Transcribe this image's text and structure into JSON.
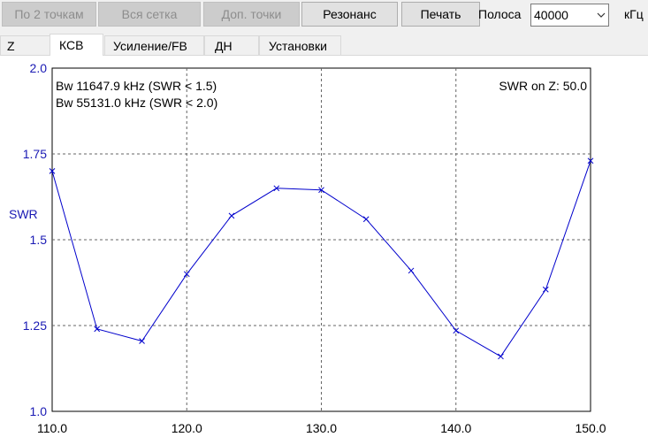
{
  "toolbar": {
    "buttons": [
      {
        "label": "По 2 точкам",
        "enabled": false
      },
      {
        "label": "Вся сетка",
        "enabled": false
      },
      {
        "label": "Доп. точки",
        "enabled": false
      },
      {
        "label": "Резонанс",
        "enabled": true
      },
      {
        "label": "Печать",
        "enabled": true
      }
    ],
    "band_label": "Полоса",
    "band_value": "40000",
    "band_unit": "кГц"
  },
  "tabs": [
    {
      "label": "Z",
      "active": false
    },
    {
      "label": "КСВ",
      "active": true
    },
    {
      "label": "Усиление/FB",
      "active": false
    },
    {
      "label": "ДН",
      "active": false
    },
    {
      "label": "Установки",
      "active": false
    }
  ],
  "chart_data": {
    "type": "line",
    "ylabel": "SWR",
    "xlabel": "",
    "xlim": [
      110.0,
      150.0
    ],
    "ylim": [
      1.0,
      2.0
    ],
    "x_ticks": [
      "110.0",
      "120.0",
      "130.0",
      "140.0",
      "150.0"
    ],
    "y_ticks": [
      "1.0",
      "1.25",
      "1.5",
      "1.75",
      "2.0"
    ],
    "grid": true,
    "annotations": {
      "bw1": "Bw 11647.9 kHz (SWR < 1.5)",
      "bw2": "Bw 55131.0 kHz (SWR < 2.0)",
      "swr_on_z": "SWR on Z: 50.0"
    },
    "series": [
      {
        "color": "#0000cc",
        "x": [
          110.0,
          113.33,
          116.67,
          120.0,
          123.33,
          126.67,
          130.0,
          133.33,
          136.67,
          140.0,
          143.33,
          146.67,
          150.0
        ],
        "y": [
          1.7,
          1.24,
          1.205,
          1.4,
          1.57,
          1.65,
          1.645,
          1.56,
          1.41,
          1.235,
          1.16,
          1.355,
          1.73
        ]
      }
    ]
  }
}
